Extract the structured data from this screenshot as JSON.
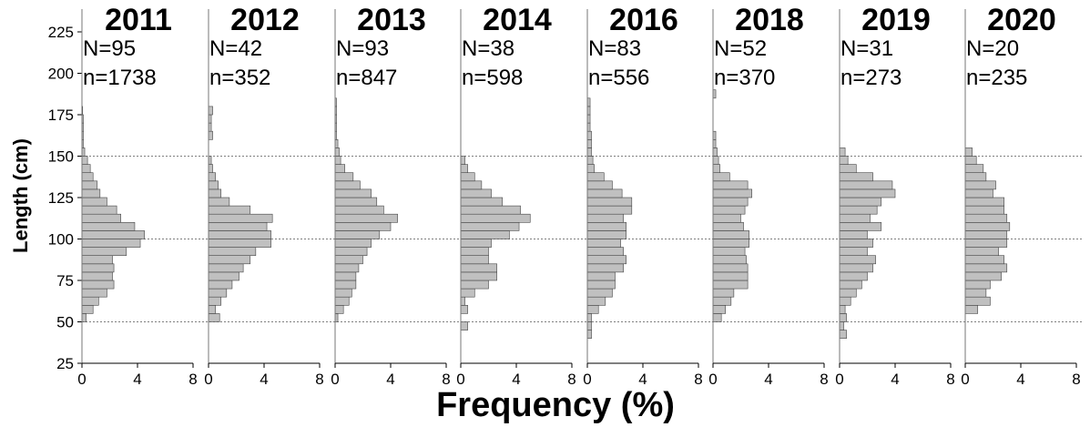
{
  "chart_data": [
    {
      "type": "histogram",
      "orientation": "horizontal",
      "title": "2011",
      "annotations": [
        "N=95",
        "n=1738"
      ],
      "ylabel": "Length (cm)",
      "xlabel": "Frequency (%)",
      "ylim": [
        25,
        225
      ],
      "yticks": [
        25,
        50,
        75,
        100,
        125,
        150,
        175,
        200,
        225
      ],
      "reference_lines": [
        50,
        100,
        150
      ],
      "xlim": [
        0,
        8
      ],
      "xticks": [
        0,
        4,
        8
      ],
      "color": "#c0c0c0",
      "bins": [
        40,
        45,
        50,
        55,
        60,
        65,
        70,
        75,
        80,
        85,
        90,
        95,
        100,
        105,
        110,
        115,
        120,
        125,
        130,
        135,
        140,
        145,
        150,
        155,
        160,
        165,
        170,
        175,
        180,
        185,
        190
      ],
      "values": [
        0,
        0,
        0.3,
        0.8,
        1.2,
        1.8,
        2.3,
        2.2,
        2.3,
        2.2,
        3.2,
        4.2,
        4.5,
        3.8,
        2.8,
        2.5,
        1.8,
        1.3,
        1.1,
        0.8,
        0.6,
        0.4,
        0.2,
        0.1,
        0.1,
        0.1,
        0.1,
        0.05,
        0,
        0
      ]
    },
    {
      "type": "histogram",
      "orientation": "horizontal",
      "title": "2012",
      "annotations": [
        "N=42",
        "n=352"
      ],
      "xlim": [
        0,
        8
      ],
      "xticks": [
        0,
        4,
        8
      ],
      "color": "#c0c0c0",
      "bins": [
        40,
        45,
        50,
        55,
        60,
        65,
        70,
        75,
        80,
        85,
        90,
        95,
        100,
        105,
        110,
        115,
        120,
        125,
        130,
        135,
        140,
        145,
        150,
        155,
        160,
        165,
        170,
        175,
        180,
        185,
        190
      ],
      "values": [
        0,
        0,
        0.8,
        0.5,
        0.9,
        1.3,
        1.7,
        2.2,
        2.5,
        3.0,
        3.4,
        4.5,
        4.5,
        4.2,
        4.6,
        3.0,
        1.5,
        0.9,
        0.7,
        0.5,
        0.3,
        0.2,
        0,
        0,
        0.3,
        0.2,
        0.2,
        0.3,
        0,
        0
      ]
    },
    {
      "type": "histogram",
      "orientation": "horizontal",
      "title": "2013",
      "annotations": [
        "N=93",
        "n=847"
      ],
      "xlim": [
        0,
        8
      ],
      "xticks": [
        0,
        4,
        8
      ],
      "color": "#c0c0c0",
      "bins": [
        40,
        45,
        50,
        55,
        60,
        65,
        70,
        75,
        80,
        85,
        90,
        95,
        100,
        105,
        110,
        115,
        120,
        125,
        130,
        135,
        140,
        145,
        150,
        155,
        160,
        165,
        170,
        175,
        180,
        185,
        190
      ],
      "values": [
        0,
        0,
        0.2,
        0.6,
        1.0,
        1.2,
        1.5,
        1.5,
        1.7,
        2.0,
        2.3,
        2.6,
        3.2,
        4.0,
        4.5,
        3.5,
        3.0,
        2.6,
        1.8,
        1.3,
        0.7,
        0.4,
        0.3,
        0.2,
        0.1,
        0.1,
        0.1,
        0.1,
        0.1,
        0
      ]
    },
    {
      "type": "histogram",
      "orientation": "horizontal",
      "title": "2014",
      "annotations": [
        "N=38",
        "n=598"
      ],
      "xlim": [
        0,
        8
      ],
      "xticks": [
        0,
        4,
        8
      ],
      "color": "#c0c0c0",
      "bins": [
        40,
        45,
        50,
        55,
        60,
        65,
        70,
        75,
        80,
        85,
        90,
        95,
        100,
        105,
        110,
        115,
        120,
        125,
        130,
        135,
        140,
        145,
        150,
        155,
        160,
        165,
        170,
        175,
        180,
        185,
        190
      ],
      "values": [
        0,
        0.5,
        0,
        0.5,
        0.3,
        1.0,
        2.0,
        2.6,
        2.6,
        2.0,
        2.0,
        2.2,
        3.5,
        4.2,
        5.0,
        4.3,
        3.0,
        2.2,
        1.5,
        1.0,
        0.5,
        0.3,
        0,
        0,
        0,
        0,
        0,
        0,
        0,
        0
      ]
    },
    {
      "type": "histogram",
      "orientation": "horizontal",
      "title": "2016",
      "annotations": [
        "N=83",
        "n=556"
      ],
      "xlim": [
        0,
        8
      ],
      "xticks": [
        0,
        4,
        8
      ],
      "color": "#c0c0c0",
      "bins": [
        40,
        45,
        50,
        55,
        60,
        65,
        70,
        75,
        80,
        85,
        90,
        95,
        100,
        105,
        110,
        115,
        120,
        125,
        130,
        135,
        140,
        145,
        150,
        155,
        160,
        165,
        170,
        175,
        180,
        185,
        190
      ],
      "values": [
        0.3,
        0.3,
        0.3,
        0.8,
        1.3,
        1.8,
        2.0,
        2.0,
        2.6,
        2.8,
        2.6,
        2.4,
        2.8,
        2.8,
        2.6,
        3.2,
        3.2,
        2.5,
        1.8,
        1.2,
        0.5,
        0.4,
        0.3,
        0.3,
        0.3,
        0.2,
        0.2,
        0.2,
        0.2,
        0
      ]
    },
    {
      "type": "histogram",
      "orientation": "horizontal",
      "title": "2018",
      "annotations": [
        "N=52",
        "n=370"
      ],
      "xlim": [
        0,
        8
      ],
      "xticks": [
        0,
        4,
        8
      ],
      "color": "#c0c0c0",
      "bins": [
        40,
        45,
        50,
        55,
        60,
        65,
        70,
        75,
        80,
        85,
        90,
        95,
        100,
        105,
        110,
        115,
        120,
        125,
        130,
        135,
        140,
        145,
        150,
        155,
        160,
        165,
        170,
        175,
        180,
        185,
        190
      ],
      "values": [
        0,
        0,
        0.6,
        0.9,
        1.3,
        1.5,
        2.5,
        2.5,
        2.5,
        2.4,
        2.3,
        2.6,
        2.6,
        2.2,
        2.0,
        2.3,
        2.5,
        2.8,
        2.5,
        1.2,
        0.5,
        0.4,
        0.3,
        0.2,
        0.2,
        0,
        0,
        0,
        0,
        0.2
      ]
    },
    {
      "type": "histogram",
      "orientation": "horizontal",
      "title": "2019",
      "annotations": [
        "N=31",
        "n=273"
      ],
      "xlim": [
        0,
        8
      ],
      "xticks": [
        0,
        4,
        8
      ],
      "color": "#c0c0c0",
      "bins": [
        40,
        45,
        50,
        55,
        60,
        65,
        70,
        75,
        80,
        85,
        90,
        95,
        100,
        105,
        110,
        115,
        120,
        125,
        130,
        135,
        140,
        145,
        150,
        155,
        160,
        165,
        170,
        175,
        180,
        185,
        190
      ],
      "values": [
        0.5,
        0.3,
        0.5,
        0.4,
        0.8,
        1.2,
        1.6,
        2.0,
        2.4,
        2.6,
        2.0,
        2.4,
        2.0,
        3.0,
        2.2,
        2.7,
        3.0,
        4.0,
        3.8,
        2.4,
        1.2,
        0.6,
        0.4,
        0,
        0,
        0,
        0,
        0,
        0,
        0
      ]
    },
    {
      "type": "histogram",
      "orientation": "horizontal",
      "title": "2020",
      "annotations": [
        "N=20",
        "n=235"
      ],
      "xlim": [
        0,
        8
      ],
      "xticks": [
        0,
        4,
        8
      ],
      "color": "#c0c0c0",
      "bins": [
        40,
        45,
        50,
        55,
        60,
        65,
        70,
        75,
        80,
        85,
        90,
        95,
        100,
        105,
        110,
        115,
        120,
        125,
        130,
        135,
        140,
        145,
        150,
        155,
        160,
        165,
        170,
        175,
        180,
        185,
        190
      ],
      "values": [
        0,
        0,
        0,
        0.9,
        1.8,
        1.5,
        1.8,
        2.6,
        3.0,
        2.8,
        2.4,
        3.0,
        3.0,
        3.2,
        3.0,
        2.8,
        2.8,
        2.0,
        2.2,
        1.5,
        1.3,
        0.8,
        0.5,
        0,
        0,
        0,
        0,
        0,
        0,
        0
      ]
    }
  ]
}
